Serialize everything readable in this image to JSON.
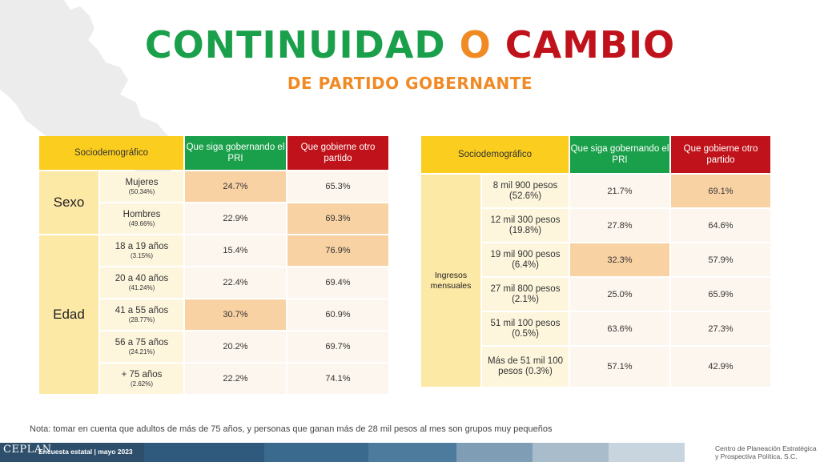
{
  "title": {
    "word1": "CONTINUIDAD",
    "word2": "O",
    "word3": "CAMBIO"
  },
  "subtitle": "DE PARTIDO GOBERNANTE",
  "colors": {
    "green": "#1aa04a",
    "orange": "#f08a24",
    "red": "#c0121a",
    "yellow": "#fbcd1e",
    "highlight": "#f9d2a4"
  },
  "left_table": {
    "headers": {
      "socio": "Sociodemográfico",
      "siga": "Que siga gobernando el PRI",
      "otro": "Que gobierne otro partido"
    },
    "groups": [
      {
        "name": "Sexo",
        "rows": [
          {
            "label": "Mujeres",
            "pct": "(50.34%)",
            "siga": "24.7%",
            "otro": "65.3%"
          },
          {
            "label": "Hombres",
            "pct": "(49.66%)",
            "siga": "22.9%",
            "otro": "69.3%"
          }
        ]
      },
      {
        "name": "Edad",
        "rows": [
          {
            "label": "18 a 19 años",
            "pct": "(3.15%)",
            "siga": "15.4%",
            "otro": "76.9%"
          },
          {
            "label": "20 a 40 años",
            "pct": "(41.24%)",
            "siga": "22.4%",
            "otro": "69.4%"
          },
          {
            "label": "41 a 55 años",
            "pct": "(28.77%)",
            "siga": "30.7%",
            "otro": "60.9%"
          },
          {
            "label": "56 a 75 años",
            "pct": "(24.21%)",
            "siga": "20.2%",
            "otro": "69.7%"
          },
          {
            "label": "+ 75 años",
            "pct": "(2.62%)",
            "siga": "22.2%",
            "otro": "74.1%"
          }
        ]
      }
    ]
  },
  "right_table": {
    "headers": {
      "socio": "Sociodemográfico",
      "siga": "Que siga gobernando el PRI",
      "otro": "Que gobierne otro partido"
    },
    "group": "Ingresos mensuales",
    "rows": [
      {
        "label": "8 mil 900 pesos (52.6%)",
        "siga": "21.7%",
        "otro": "69.1%"
      },
      {
        "label": "12 mil 300 pesos (19.8%)",
        "siga": "27.8%",
        "otro": "64.6%"
      },
      {
        "label": "19 mil 900 pesos (6.4%)",
        "siga": "32.3%",
        "otro": "57.9%"
      },
      {
        "label": "27 mil 800 pesos (2.1%)",
        "siga": "25.0%",
        "otro": "65.9%"
      },
      {
        "label": "51 mil 100 pesos (0.5%)",
        "siga": "63.6%",
        "otro": "27.3%"
      },
      {
        "label": "Más de 51 mil 100 pesos (0.3%)",
        "siga": "57.1%",
        "otro": "42.9%"
      }
    ]
  },
  "note": "Nota: tomar en cuenta que adultos de más de 75 años, y personas que ganan más de 28 mil pesos al mes son grupos muy pequeños",
  "footer": {
    "brand": "CEPLAN",
    "survey": "Encuesta estatal | mayo 2023",
    "org_line1": "Centro de Planeación Estratégica",
    "org_line2": "y Prospectiva Política, S.C."
  }
}
